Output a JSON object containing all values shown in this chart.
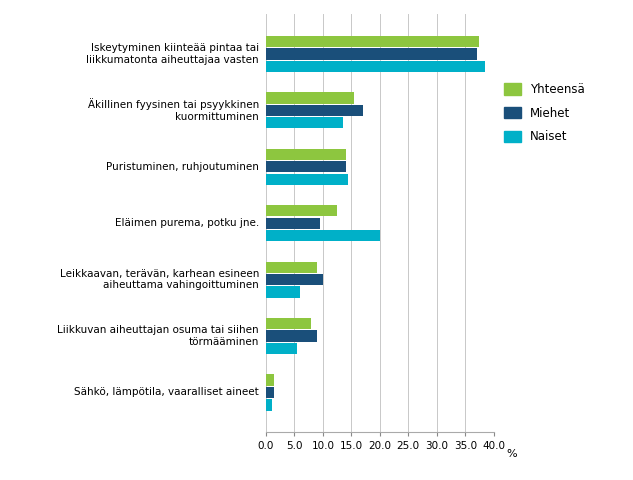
{
  "categories": [
    "Iskeytyminen kiinteää pintaa tai\nliikkumatonta aiheuttajaa vasten",
    "Äkillinen fyysinen tai psyykkinen\nkuormittuminen",
    "Puristuminen, ruhjoutuminen",
    "Eläimen purema, potku jne.",
    "Leikkaavan, terävän, karhean esineen\naiheuttama vahingoittuminen",
    "Liikkuvan aiheuttajan osuma tai siihen\ntörmääminen",
    "Sähkö, lämpötila, vaaralliset aineet"
  ],
  "series": {
    "Yhteensä": [
      37.5,
      15.5,
      14.0,
      12.5,
      9.0,
      8.0,
      1.5
    ],
    "Miehet": [
      37.0,
      17.0,
      14.0,
      9.5,
      10.0,
      9.0,
      1.5
    ],
    "Naiset": [
      38.5,
      13.5,
      14.5,
      20.0,
      6.0,
      5.5,
      1.0
    ]
  },
  "colors": {
    "Yhteensä": "#8dc63f",
    "Miehet": "#1a4f7a",
    "Naiset": "#00b0c8"
  },
  "xlim": [
    0,
    40
  ],
  "xticks": [
    0.0,
    5.0,
    10.0,
    15.0,
    20.0,
    25.0,
    30.0,
    35.0,
    40.0
  ],
  "xlabel": "%",
  "bar_height": 0.22,
  "background_color": "#ffffff",
  "grid_color": "#c8c8c8"
}
